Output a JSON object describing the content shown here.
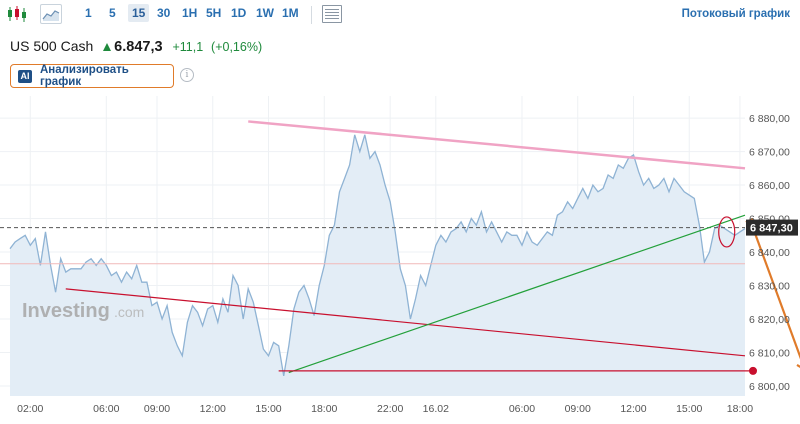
{
  "toolbar": {
    "chart_type_candles_icon": "candlestick-icon",
    "chart_type_line_icon": "line-chart-icon",
    "timeframes": [
      "1",
      "5",
      "15",
      "30",
      "1H",
      "5H",
      "1D",
      "1W",
      "1M"
    ],
    "active_timeframe": "15",
    "table_icon": "table-icon",
    "stream_link": "Потоковый график"
  },
  "instrument": {
    "name": "US 500 Cash",
    "price": "6.847,3",
    "change": "+11,1",
    "change_pct": "(+0,16%)",
    "up_color": "#1f8a3c"
  },
  "ai_button": {
    "badge": "AI",
    "label": "Анализировать график"
  },
  "info_icon": "i",
  "watermark": {
    "brand": "Investing",
    "suffix": ".com"
  },
  "chart_data": {
    "type": "area",
    "title": "",
    "xlabel": "",
    "ylabel": "",
    "ylim": [
      6797,
      6886
    ],
    "y_ticks": [
      6800,
      6810,
      6820,
      6830,
      6840,
      6850,
      6860,
      6870,
      6880
    ],
    "y_tick_labels": [
      "6 800,00",
      "6 810,00",
      "6 820,00",
      "6 830,00",
      "6 840,00",
      "6 850,00",
      "6 860,00",
      "6 870,00",
      "6 880,00"
    ],
    "x_tick_labels": [
      "02:00",
      "06:00",
      "09:00",
      "12:00",
      "15:00",
      "18:00",
      "22:00",
      "16.02",
      "06:00",
      "09:00",
      "12:00",
      "15:00",
      "18:00"
    ],
    "x_tick_index": [
      4,
      19,
      29,
      40,
      51,
      62,
      75,
      84,
      101,
      112,
      123,
      134,
      144
    ],
    "x_count": 146,
    "current_price_label": "6 847,30",
    "current_price": 6847.3,
    "reference_line": 6836.5,
    "series": [
      {
        "values": [
          6841,
          6843,
          6844,
          6845,
          6842,
          6844,
          6836,
          6846,
          6836,
          6828,
          6838,
          6834,
          6835,
          6835,
          6835,
          6837,
          6838,
          6836,
          6838,
          6836,
          6833,
          6834,
          6831,
          6834,
          6832,
          6836,
          6831,
          6831,
          6824,
          6825,
          6820,
          6824,
          6816,
          6812,
          6809,
          6819,
          6824,
          6822,
          6818,
          6823,
          6824,
          6819,
          6826,
          6822,
          6833,
          6830,
          6820,
          6829,
          6825,
          6818,
          6811,
          6809,
          6813,
          6812,
          6803,
          6812,
          6823,
          6828,
          6830,
          6826,
          6821,
          6830,
          6836,
          6845,
          6848,
          6858,
          6862,
          6866,
          6875,
          6870,
          6875,
          6868,
          6870,
          6866,
          6860,
          6855,
          6846,
          6835,
          6830,
          6820,
          6826,
          6833,
          6830,
          6836,
          6842,
          6845,
          6843,
          6846,
          6847,
          6849,
          6846,
          6850,
          6848,
          6852,
          6846,
          6849,
          6846,
          6843,
          6846,
          6845,
          6845,
          6842,
          6846,
          6843,
          6842,
          6844,
          6846,
          6845,
          6851,
          6852,
          6855,
          6853,
          6856,
          6859,
          6856,
          6860,
          6858,
          6859,
          6863,
          6862,
          6866,
          6865,
          6868,
          6869,
          6864,
          6860,
          6862,
          6859,
          6860,
          6862,
          6858,
          6862,
          6860,
          6858,
          6857,
          6856,
          6848,
          6837,
          6840,
          6847,
          6848,
          6847,
          6846,
          6845,
          6846,
          6847
        ],
        "line_color": "#8fb3d4",
        "fill_color": "#e3edf6"
      }
    ],
    "annotations": {
      "trendlines": [
        {
          "name": "resistance",
          "color": "#f0a3c4",
          "from": [
            47,
            6879
          ],
          "to": [
            145,
            6865
          ]
        },
        {
          "name": "support-red",
          "color": "#c8102e",
          "from": [
            11,
            6829
          ],
          "to": [
            145,
            6809
          ]
        },
        {
          "name": "rising-green",
          "color": "#23a03a",
          "from": [
            55,
            6804
          ],
          "to": [
            145,
            6851
          ]
        },
        {
          "name": "horizontal-red",
          "color": "#c8102e",
          "from": [
            53,
            6804.5
          ],
          "to": [
            146,
            6804.5
          ]
        }
      ],
      "arrow_color": "#e07b2a",
      "circle_color": "#c8102e"
    }
  }
}
